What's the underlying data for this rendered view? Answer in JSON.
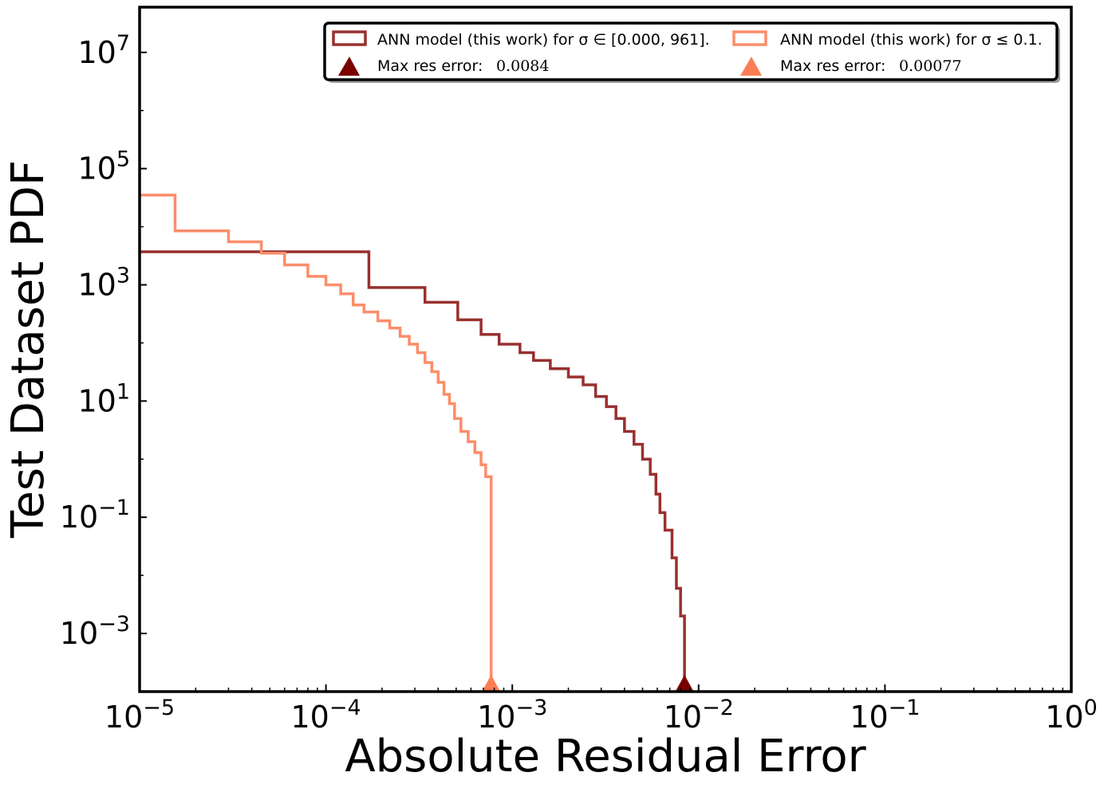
{
  "chart_data": {
    "type": "histogram-step",
    "xlabel": "Absolute Residual Error",
    "ylabel": "Test Dataset PDF",
    "xscale": "log",
    "yscale": "log",
    "xlim": [
      1e-05,
      1
    ],
    "ylim": [
      0.0001,
      60000000
    ],
    "x_ticks": [
      {
        "value": 1e-05,
        "base": "10",
        "exp": "−5"
      },
      {
        "value": 0.0001,
        "base": "10",
        "exp": "−4"
      },
      {
        "value": 0.001,
        "base": "10",
        "exp": "−3"
      },
      {
        "value": 0.01,
        "base": "10",
        "exp": "−2"
      },
      {
        "value": 0.1,
        "base": "10",
        "exp": "−1"
      },
      {
        "value": 1,
        "base": "10",
        "exp": "0"
      }
    ],
    "y_ticks": [
      {
        "value": 0.001,
        "base": "10",
        "exp": "−3"
      },
      {
        "value": 0.1,
        "base": "10",
        "exp": "−1"
      },
      {
        "value": 10,
        "base": "10",
        "exp": "1"
      },
      {
        "value": 1000,
        "base": "10",
        "exp": "3"
      },
      {
        "value": 100000,
        "base": "10",
        "exp": "5"
      },
      {
        "value": 10000000,
        "base": "10",
        "exp": "7"
      }
    ],
    "legend_position": "top-right",
    "series": [
      {
        "name": "ANN model (this work) for σ ∈ [0.000, 961].",
        "color": "#98302f",
        "bins": [
          [
            1e-05,
            0.00017,
            3700
          ],
          [
            0.00017,
            0.00034,
            900
          ],
          [
            0.00034,
            0.00051,
            500
          ],
          [
            0.00051,
            0.00068,
            250
          ],
          [
            0.00068,
            0.00085,
            140
          ],
          [
            0.00085,
            0.0011,
            95
          ],
          [
            0.0011,
            0.0013,
            68
          ],
          [
            0.0013,
            0.0016,
            50
          ],
          [
            0.0016,
            0.002,
            36
          ],
          [
            0.002,
            0.0024,
            26
          ],
          [
            0.0024,
            0.0028,
            19
          ],
          [
            0.0028,
            0.0032,
            12
          ],
          [
            0.0032,
            0.0036,
            8
          ],
          [
            0.0036,
            0.004,
            5
          ],
          [
            0.004,
            0.0045,
            3
          ],
          [
            0.0045,
            0.005,
            1.8
          ],
          [
            0.005,
            0.0055,
            1.0
          ],
          [
            0.0055,
            0.0059,
            0.55
          ],
          [
            0.0059,
            0.0062,
            0.25
          ],
          [
            0.0062,
            0.0066,
            0.12
          ],
          [
            0.0066,
            0.0072,
            0.06
          ],
          [
            0.0072,
            0.0076,
            0.02
          ],
          [
            0.0076,
            0.008,
            0.006
          ],
          [
            0.008,
            0.0084,
            0.002
          ]
        ],
        "max_error": {
          "label": "Max res error:",
          "value": "0.0084",
          "x": 0.0084,
          "color": "#7b0000"
        }
      },
      {
        "name": "ANN model (this work) for σ ≤ 0.1.",
        "color": "#fc8d6a",
        "bins": [
          [
            1e-05,
            1.55e-05,
            35000
          ],
          [
            1.55e-05,
            3e-05,
            8500
          ],
          [
            3e-05,
            4.5e-05,
            5500
          ],
          [
            4.5e-05,
            6e-05,
            3500
          ],
          [
            6e-05,
            8e-05,
            2200
          ],
          [
            8e-05,
            0.0001,
            1400
          ],
          [
            0.0001,
            0.00012,
            1000
          ],
          [
            0.00012,
            0.00014,
            700
          ],
          [
            0.00014,
            0.00016,
            450
          ],
          [
            0.00016,
            0.00019,
            340
          ],
          [
            0.00019,
            0.00022,
            240
          ],
          [
            0.00022,
            0.00025,
            180
          ],
          [
            0.00025,
            0.00028,
            130
          ],
          [
            0.00028,
            0.00031,
            95
          ],
          [
            0.00031,
            0.00034,
            68
          ],
          [
            0.00034,
            0.00037,
            46
          ],
          [
            0.00037,
            0.0004,
            32
          ],
          [
            0.0004,
            0.00043,
            21
          ],
          [
            0.00043,
            0.00046,
            13
          ],
          [
            0.00046,
            0.00049,
            9
          ],
          [
            0.00049,
            0.00053,
            5
          ],
          [
            0.00053,
            0.00058,
            3
          ],
          [
            0.00058,
            0.00063,
            2
          ],
          [
            0.00063,
            0.00068,
            1.3
          ],
          [
            0.00068,
            0.00072,
            0.8
          ],
          [
            0.00072,
            0.00077,
            0.5
          ]
        ],
        "max_error": {
          "label": "Max res error:",
          "value": "0.00077",
          "x": 0.00077,
          "color": "#fc7e55"
        }
      }
    ]
  }
}
